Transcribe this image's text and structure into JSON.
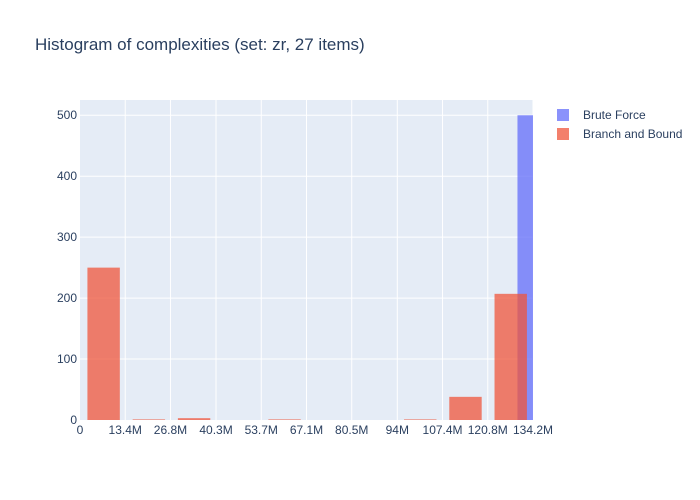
{
  "chart_data": {
    "type": "bar",
    "title": "Histogram of complexities (set: zr, 27 items)",
    "xlabel": "",
    "ylabel": "",
    "xlim": [
      0,
      134.2
    ],
    "ylim": [
      0,
      525
    ],
    "x_ticks": [
      0,
      13.4,
      26.8,
      40.3,
      53.7,
      67.1,
      80.5,
      94,
      107.4,
      120.8,
      134.2
    ],
    "x_tick_labels": [
      "0",
      "13.4M",
      "26.8M",
      "40.3M",
      "53.7M",
      "67.1M",
      "80.5M",
      "94M",
      "107.4M",
      "120.8M",
      "134.2M"
    ],
    "y_ticks": [
      0,
      100,
      200,
      300,
      400,
      500
    ],
    "y_tick_labels": [
      "0",
      "100",
      "200",
      "300",
      "400",
      "500"
    ],
    "grid": true,
    "legend_position": "top-right",
    "series": [
      {
        "name": "Brute Force",
        "color": "#636efa",
        "bins": [
          {
            "x0": 129.6,
            "x1": 134.2,
            "value": 500
          }
        ]
      },
      {
        "name": "Branch and Bound",
        "color": "#ef553b",
        "bins": [
          {
            "x0": 2.2,
            "x1": 11.8,
            "value": 250
          },
          {
            "x0": 15.6,
            "x1": 25.2,
            "value": 1
          },
          {
            "x0": 29.0,
            "x1": 38.6,
            "value": 3
          },
          {
            "x0": 42.4,
            "x1": 52.0,
            "value": 0
          },
          {
            "x0": 55.8,
            "x1": 65.4,
            "value": 1
          },
          {
            "x0": 69.2,
            "x1": 78.8,
            "value": 0
          },
          {
            "x0": 82.6,
            "x1": 92.2,
            "value": 0
          },
          {
            "x0": 96.0,
            "x1": 105.6,
            "value": 1
          },
          {
            "x0": 109.4,
            "x1": 119.0,
            "value": 38
          },
          {
            "x0": 122.8,
            "x1": 132.4,
            "value": 207
          }
        ]
      }
    ]
  }
}
